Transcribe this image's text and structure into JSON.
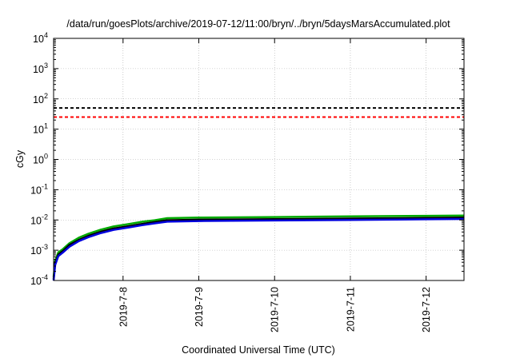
{
  "chart_data": {
    "type": "line",
    "title": "/data/run/goesPlots/archive/2019-07-12/11:00/bryn/../bryn/5daysMarsAccumulated.plot",
    "xlabel": "Coordinated Universal Time (UTC)",
    "ylabel": "cGy",
    "y_scale": "log",
    "ylim": [
      0.0001,
      10000
    ],
    "xlim": [
      "2019-07-07T02:00",
      "2019-07-12T12:00"
    ],
    "x_ticks": [
      "2019-7-8",
      "2019-7-9",
      "2019-7-10",
      "2019-7-11",
      "2019-7-12"
    ],
    "y_ticks": [
      {
        "base": "10",
        "exp": "-4",
        "value": 0.0001
      },
      {
        "base": "10",
        "exp": "-3",
        "value": 0.001
      },
      {
        "base": "10",
        "exp": "-2",
        "value": 0.01
      },
      {
        "base": "10",
        "exp": "-1",
        "value": 0.1
      },
      {
        "base": "10",
        "exp": "0",
        "value": 1
      },
      {
        "base": "10",
        "exp": "1",
        "value": 10
      },
      {
        "base": "10",
        "exp": "2",
        "value": 100
      },
      {
        "base": "10",
        "exp": "3",
        "value": 1000
      },
      {
        "base": "10",
        "exp": "4",
        "value": 10000
      }
    ],
    "grid": true,
    "legend": "none",
    "reference_lines": [
      {
        "value": 50,
        "color": "#000000",
        "style": "dashed"
      },
      {
        "value": 25,
        "color": "#ff0000",
        "style": "dashed"
      }
    ],
    "series": [
      {
        "color": "#00aa00",
        "x": [
          "2019-07-07T02:00",
          "2019-07-07T02:30",
          "2019-07-07T03:30",
          "2019-07-07T05:00",
          "2019-07-07T07:00",
          "2019-07-07T10:00",
          "2019-07-07T13:00",
          "2019-07-07T17:00",
          "2019-07-07T21:00",
          "2019-07-08T02:00",
          "2019-07-08T06:00",
          "2019-07-08T10:00",
          "2019-07-08T14:00",
          "2019-07-09T00:00",
          "2019-07-10T00:00",
          "2019-07-11T00:00",
          "2019-07-12T00:00",
          "2019-07-12T12:00"
        ],
        "y": [
          0.00013,
          0.00045,
          0.00085,
          0.0011,
          0.0017,
          0.0026,
          0.0035,
          0.0048,
          0.0061,
          0.0074,
          0.0087,
          0.0098,
          0.0115,
          0.012,
          0.0125,
          0.0131,
          0.0137,
          0.014
        ]
      },
      {
        "color": "#000000",
        "x": [
          "2019-07-07T02:00",
          "2019-07-07T02:30",
          "2019-07-07T03:30",
          "2019-07-07T05:00",
          "2019-07-07T07:00",
          "2019-07-07T10:00",
          "2019-07-07T13:00",
          "2019-07-07T17:00",
          "2019-07-07T21:00",
          "2019-07-08T02:00",
          "2019-07-08T06:00",
          "2019-07-08T10:00",
          "2019-07-08T14:00",
          "2019-07-09T00:00",
          "2019-07-10T00:00",
          "2019-07-11T00:00",
          "2019-07-12T00:00",
          "2019-07-12T12:00"
        ],
        "y": [
          0.00011,
          0.00038,
          0.00072,
          0.00095,
          0.0015,
          0.0022,
          0.003,
          0.0041,
          0.0052,
          0.0063,
          0.0074,
          0.0085,
          0.0098,
          0.0102,
          0.0106,
          0.0111,
          0.0116,
          0.012
        ]
      },
      {
        "color": "#0000dd",
        "x": [
          "2019-07-07T02:00",
          "2019-07-07T02:30",
          "2019-07-07T03:30",
          "2019-07-07T05:00",
          "2019-07-07T07:00",
          "2019-07-07T10:00",
          "2019-07-07T13:00",
          "2019-07-07T17:00",
          "2019-07-07T21:00",
          "2019-07-08T02:00",
          "2019-07-08T06:00",
          "2019-07-08T10:00",
          "2019-07-08T14:00",
          "2019-07-09T00:00",
          "2019-07-10T00:00",
          "2019-07-11T00:00",
          "2019-07-12T00:00",
          "2019-07-12T12:00"
        ],
        "y": [
          0.0001,
          0.00033,
          0.00064,
          0.00085,
          0.0013,
          0.002,
          0.0027,
          0.0037,
          0.0047,
          0.0057,
          0.0067,
          0.0077,
          0.0088,
          0.0092,
          0.0096,
          0.01,
          0.0105,
          0.0108
        ]
      }
    ]
  }
}
